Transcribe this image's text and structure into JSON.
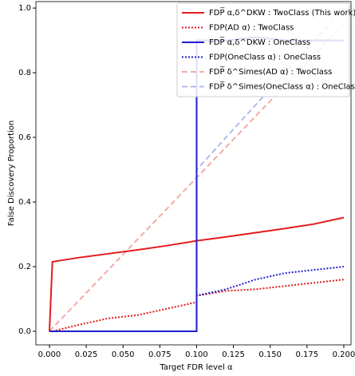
{
  "chart_data": {
    "type": "line",
    "xlabel": "Target FDR level α",
    "ylabel": "False Discovery Proportion",
    "x": [
      0,
      0.002,
      0.02,
      0.04,
      0.06,
      0.08,
      0.1,
      0.1,
      0.12,
      0.14,
      0.16,
      0.18,
      0.2
    ],
    "xlim": [
      -0.0092,
      0.2049
    ],
    "ylim": [
      -0.042,
      1.02
    ],
    "xticks": [
      {
        "value": 0,
        "label": "0.000"
      },
      {
        "value": 0.025,
        "label": "0.025"
      },
      {
        "value": 0.05,
        "label": "0.050"
      },
      {
        "value": 0.075,
        "label": "0.075"
      },
      {
        "value": 0.1,
        "label": "0.100"
      },
      {
        "value": 0.125,
        "label": "0.125"
      },
      {
        "value": 0.15,
        "label": "0.150"
      },
      {
        "value": 0.175,
        "label": "0.175"
      },
      {
        "value": 0.2,
        "label": "0.200"
      }
    ],
    "yticks": [
      {
        "value": 0,
        "label": "0.0"
      },
      {
        "value": 0.2,
        "label": "0.2"
      },
      {
        "value": 0.4,
        "label": "0.4"
      },
      {
        "value": 0.6,
        "label": "0.6"
      },
      {
        "value": 0.8,
        "label": "0.8"
      },
      {
        "value": 1,
        "label": "1.0"
      }
    ],
    "legend": "upper right",
    "series": [
      {
        "name": "FDP̅ α,δ^DKW : TwoClass (This work)",
        "color": "#e31a1c",
        "style": "solid",
        "values": [
          0,
          0.215,
          0.228,
          0.24,
          0.252,
          0.265,
          0.28,
          0.28,
          0.292,
          0.305,
          0.318,
          0.332,
          0.352
        ]
      },
      {
        "name": "FDP(AD α) : TwoClass",
        "color": "#e31a1c",
        "style": "dotted",
        "values": [
          0,
          0,
          0.02,
          0.04,
          0.05,
          0.07,
          0.09,
          0.11,
          0.125,
          0.13,
          0.14,
          0.15,
          0.16
        ]
      },
      {
        "name": "FDP̅ α,δ^DKW : OneClass",
        "color": "#1f1fcc",
        "style": "solid",
        "values": [
          0,
          0,
          0,
          0,
          0,
          0,
          0,
          0.9,
          0.9,
          0.91,
          0.9,
          0.9,
          0.9
        ]
      },
      {
        "name": "FDP(OneClass α) : OneClass",
        "color": "#1f1fcc",
        "style": "dotted",
        "values": [
          0,
          0,
          0,
          0,
          0,
          0,
          0,
          0.11,
          0.13,
          0.16,
          0.18,
          0.19,
          0.2
        ]
      },
      {
        "name": "FDP̅ δ^Simes(AD α) : TwoClass",
        "color": "#f4aaa6",
        "style": "dashed",
        "values": [
          0,
          0.01,
          0.095,
          0.19,
          0.285,
          0.38,
          0.475,
          0.475,
          0.57,
          0.665,
          0.76,
          0.855,
          0.95
        ]
      },
      {
        "name": "FDP̅ δ^Simes(OneClass α) : OneClass",
        "color": "#b4b8ef",
        "style": "dashed",
        "values": [
          null,
          null,
          null,
          null,
          null,
          null,
          0,
          0.5,
          0.6,
          0.7,
          0.8,
          0.9,
          1.0
        ]
      }
    ]
  }
}
